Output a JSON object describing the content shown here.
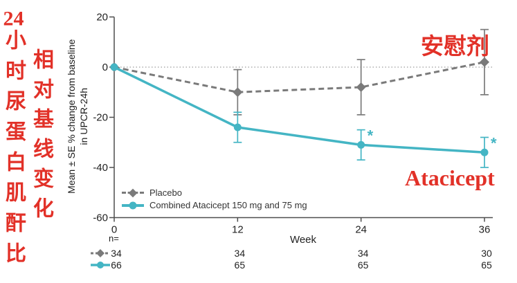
{
  "annotations": {
    "left_col_1_prefix": "24",
    "left_col_1_rest": "小时尿蛋白肌酐比",
    "left_col_2": "相对基线变化",
    "placebo_cn": "安慰剂",
    "atacicept_label": "Atacicept"
  },
  "colors": {
    "placebo_gray": "#7a7a7a",
    "atacicept_teal": "#44b5c4",
    "annotation_red": "#e23128",
    "axis": "#4d4d4d"
  },
  "legend": {
    "items": [
      {
        "label": "Placebo"
      },
      {
        "label": "Combined Atacicept 150 mg and 75 mg"
      }
    ]
  },
  "chart_data": {
    "type": "line",
    "ylabel_line1": "Mean ± SE % change from baseline",
    "ylabel_line2": "in UPCR-24h",
    "xlabel": "Week",
    "x": [
      0,
      12,
      24,
      36
    ],
    "xlim": [
      0,
      36
    ],
    "ylim": [
      -60,
      20
    ],
    "yticks": [
      20,
      0,
      -20,
      -40,
      -60
    ],
    "zero_reference_line": true,
    "legend_position": "lower-left",
    "grid": false,
    "n_label": "n=",
    "series": [
      {
        "name": "Placebo",
        "style": "dashed",
        "marker": "diamond",
        "values": [
          0,
          -10,
          -8,
          2
        ],
        "se": [
          0,
          9,
          11,
          13
        ],
        "significant": [
          false,
          false,
          false,
          false
        ],
        "n": [
          34,
          34,
          34,
          30
        ]
      },
      {
        "name": "Combined Atacicept 150 mg and 75 mg",
        "style": "solid",
        "marker": "circle",
        "values": [
          0,
          -24,
          -31,
          -34
        ],
        "se": [
          0,
          6,
          6,
          6
        ],
        "significant": [
          false,
          false,
          true,
          true
        ],
        "n": [
          66,
          65,
          65,
          65
        ]
      }
    ]
  }
}
